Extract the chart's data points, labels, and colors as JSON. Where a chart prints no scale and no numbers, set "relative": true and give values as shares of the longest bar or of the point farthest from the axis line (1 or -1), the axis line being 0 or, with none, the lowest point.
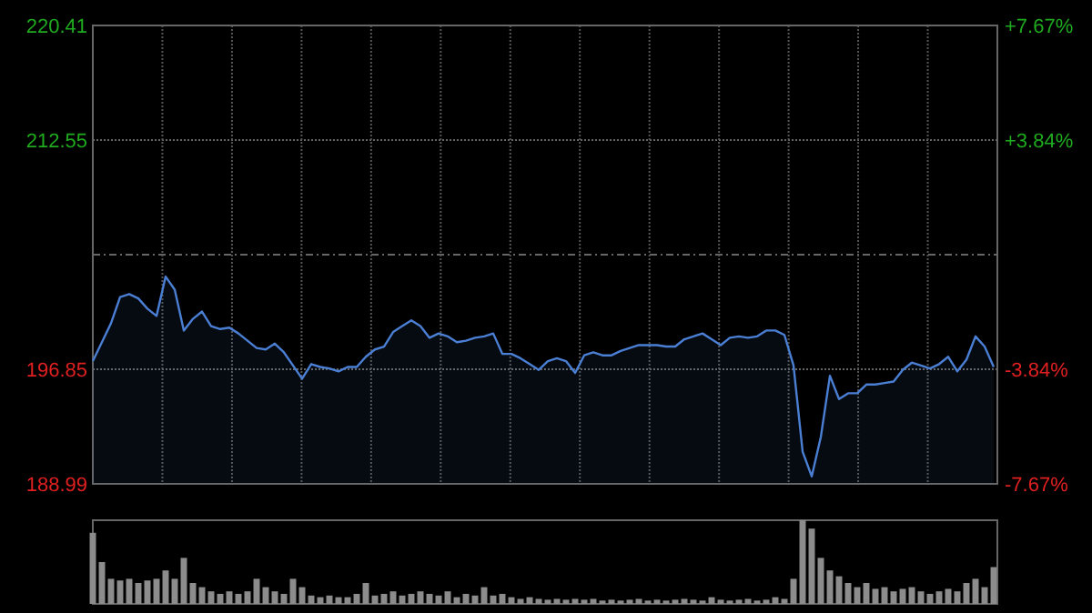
{
  "chart_data": [
    {
      "type": "area",
      "categories": [
        null,
        null,
        null,
        null,
        null,
        null,
        null,
        null,
        null,
        null,
        null,
        null,
        null,
        null,
        null,
        null,
        null,
        null,
        null,
        null,
        null,
        null,
        null,
        null,
        null,
        null,
        null,
        null,
        null,
        null,
        null,
        null,
        null,
        null,
        null,
        null,
        null,
        null,
        null,
        null,
        null,
        null,
        null,
        null,
        null,
        null,
        null,
        null,
        null,
        null,
        null,
        null,
        null,
        null,
        null,
        null,
        null,
        null,
        null,
        null,
        null,
        null,
        null,
        null,
        null,
        null,
        null,
        null,
        null,
        null,
        null,
        null,
        null,
        null,
        null,
        null,
        null,
        null,
        null,
        null,
        null,
        null,
        null,
        null,
        null,
        null,
        null,
        null,
        null,
        null,
        null,
        null,
        null,
        null,
        null,
        null,
        null,
        null,
        null,
        null
      ],
      "series": [
        {
          "color": "#4a7fd4",
          "values": [
            197.4,
            198.7,
            200.0,
            201.8,
            202.0,
            201.7,
            201.0,
            200.5,
            203.2,
            202.3,
            199.5,
            200.3,
            200.8,
            199.8,
            199.6,
            199.7,
            199.3,
            198.8,
            198.3,
            198.2,
            198.6,
            198.0,
            197.1,
            196.2,
            197.2,
            197.0,
            196.9,
            196.7,
            197.0,
            197.0,
            197.7,
            198.2,
            198.4,
            199.4,
            199.8,
            200.2,
            199.8,
            199.0,
            199.3,
            199.1,
            198.7,
            198.8,
            199.0,
            199.1,
            199.3,
            197.9,
            197.9,
            197.6,
            197.2,
            196.8,
            197.4,
            197.6,
            197.4,
            196.6,
            197.8,
            198.0,
            197.8,
            197.8,
            198.1,
            198.3,
            198.5,
            198.5,
            198.5,
            198.4,
            198.4,
            198.9,
            199.1,
            199.3,
            198.9,
            198.5,
            199.0,
            199.1,
            199.0,
            199.1,
            199.5,
            199.5,
            199.2,
            197.1,
            191.2,
            189.5,
            192.2,
            196.4,
            194.8,
            195.2,
            195.2,
            195.8,
            195.8,
            195.9,
            196.0,
            196.8,
            197.3,
            197.1,
            196.9,
            197.2,
            197.7,
            196.7,
            197.5,
            199.1,
            198.4,
            197.0
          ]
        }
      ],
      "ylim": [
        188.99,
        220.41
      ],
      "yticks": [
        188.99,
        196.85,
        {
          "value": 204.7,
          "label": null
        },
        212.55,
        220.41
      ],
      "y2lim": [
        -7.67,
        7.67
      ],
      "y2ticks": [
        {
          "value": -7.67,
          "label": "-7.67%"
        },
        {
          "value": -3.84,
          "label": "-3.84%"
        },
        {
          "value": 3.84,
          "label": "+3.84%"
        },
        {
          "value": 7.67,
          "label": "+7.67%"
        }
      ],
      "grid": true
    },
    {
      "type": "bar",
      "relative": true,
      "categories": [
        null,
        null,
        null,
        null,
        null,
        null,
        null,
        null,
        null,
        null,
        null,
        null,
        null,
        null,
        null,
        null,
        null,
        null,
        null,
        null,
        null,
        null,
        null,
        null,
        null,
        null,
        null,
        null,
        null,
        null,
        null,
        null,
        null,
        null,
        null,
        null,
        null,
        null,
        null,
        null,
        null,
        null,
        null,
        null,
        null,
        null,
        null,
        null,
        null,
        null,
        null,
        null,
        null,
        null,
        null,
        null,
        null,
        null,
        null,
        null,
        null,
        null,
        null,
        null,
        null,
        null,
        null,
        null,
        null,
        null,
        null,
        null,
        null,
        null,
        null,
        null,
        null,
        null,
        null,
        null,
        null,
        null,
        null,
        null,
        null,
        null,
        null,
        null,
        null,
        null,
        null,
        null,
        null,
        null,
        null,
        null,
        null,
        null,
        null,
        null
      ],
      "color": "#8c8c8c",
      "values": [
        0.85,
        0.5,
        0.3,
        0.28,
        0.3,
        0.25,
        0.28,
        0.3,
        0.4,
        0.3,
        0.55,
        0.25,
        0.2,
        0.15,
        0.12,
        0.15,
        0.12,
        0.15,
        0.3,
        0.2,
        0.15,
        0.12,
        0.3,
        0.2,
        0.1,
        0.08,
        0.1,
        0.08,
        0.08,
        0.12,
        0.25,
        0.1,
        0.12,
        0.15,
        0.1,
        0.12,
        0.15,
        0.12,
        0.1,
        0.15,
        0.08,
        0.12,
        0.1,
        0.2,
        0.1,
        0.12,
        0.08,
        0.06,
        0.08,
        0.06,
        0.05,
        0.06,
        0.05,
        0.06,
        0.05,
        0.06,
        0.04,
        0.05,
        0.04,
        0.05,
        0.06,
        0.04,
        0.05,
        0.04,
        0.05,
        0.06,
        0.05,
        0.04,
        0.08,
        0.05,
        0.04,
        0.05,
        0.06,
        0.04,
        0.05,
        0.08,
        0.06,
        0.3,
        1.0,
        0.9,
        0.55,
        0.4,
        0.33,
        0.25,
        0.2,
        0.25,
        0.18,
        0.2,
        0.15,
        0.18,
        0.2,
        0.15,
        0.12,
        0.15,
        0.18,
        0.15,
        0.25,
        0.3,
        0.2,
        0.44
      ]
    }
  ]
}
